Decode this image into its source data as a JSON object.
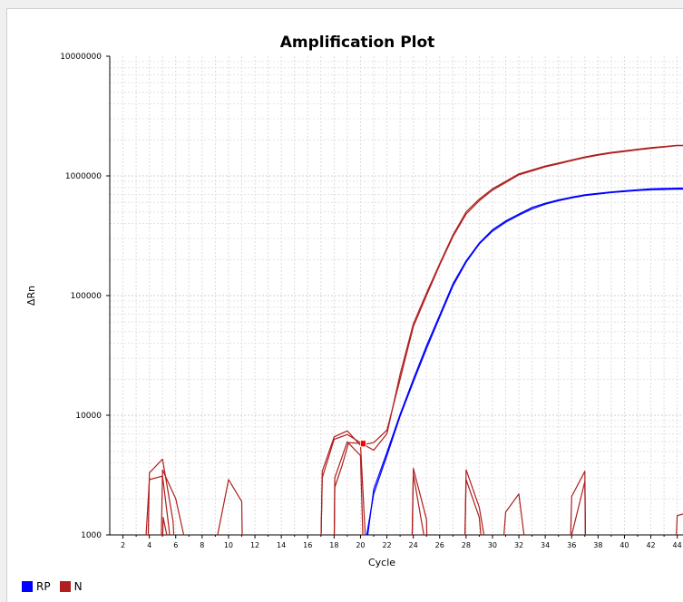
{
  "chart_data": {
    "type": "line",
    "title": "Amplification Plot",
    "xlabel": "Cycle",
    "ylabel": "ΔRn",
    "y_scale": "log",
    "ylim": [
      1000,
      10000000
    ],
    "xlim": [
      1,
      45
    ],
    "x_ticks": [
      2,
      4,
      6,
      8,
      10,
      12,
      14,
      16,
      18,
      20,
      22,
      24,
      26,
      28,
      30,
      32,
      34,
      36,
      38,
      40,
      42,
      44
    ],
    "y_ticks": [
      {
        "value": 1000,
        "label": "1000"
      },
      {
        "value": 10000,
        "label": "10000"
      },
      {
        "value": 100000,
        "label": "100000"
      },
      {
        "value": 1000000,
        "label": "1000000"
      },
      {
        "value": 10000000,
        "label": "10000000"
      }
    ],
    "grid": true,
    "legend_position": "bottom-left",
    "threshold_marker": {
      "x": 20.2,
      "y": 5800,
      "color": "#ff0000"
    },
    "series": [
      {
        "name": "RP",
        "color": "#0000ff",
        "lines": [
          [
            [
              20.4,
              900
            ],
            [
              21,
              2200
            ],
            [
              22,
              4600
            ],
            [
              23,
              9800
            ],
            [
              24,
              19000
            ],
            [
              25,
              36000
            ],
            [
              26,
              66000
            ],
            [
              27,
              120000
            ],
            [
              28,
              190000
            ],
            [
              29,
              270000
            ],
            [
              30,
              345000
            ],
            [
              31,
              410000
            ],
            [
              32,
              470000
            ],
            [
              33,
              530000
            ],
            [
              34,
              580000
            ],
            [
              35,
              620000
            ],
            [
              36,
              655000
            ],
            [
              37,
              685000
            ],
            [
              38,
              705000
            ],
            [
              39,
              725000
            ],
            [
              40,
              740000
            ],
            [
              41,
              755000
            ],
            [
              42,
              765000
            ],
            [
              43,
              770000
            ],
            [
              44,
              775000
            ],
            [
              45,
              775000
            ]
          ],
          [
            [
              20.5,
              900
            ],
            [
              21,
              2400
            ],
            [
              22,
              4900
            ],
            [
              23,
              10200
            ],
            [
              24,
              20000
            ],
            [
              25,
              38000
            ],
            [
              26,
              69000
            ],
            [
              27,
              125000
            ],
            [
              28,
              195000
            ],
            [
              29,
              275000
            ],
            [
              30,
              355000
            ],
            [
              31,
              420000
            ],
            [
              32,
              480000
            ],
            [
              33,
              545000
            ],
            [
              34,
              590000
            ],
            [
              35,
              630000
            ],
            [
              36,
              665000
            ],
            [
              37,
              695000
            ],
            [
              38,
              715000
            ],
            [
              39,
              735000
            ],
            [
              40,
              750000
            ],
            [
              41,
              765000
            ],
            [
              42,
              780000
            ],
            [
              43,
              785000
            ],
            [
              44,
              790000
            ],
            [
              45,
              790000
            ]
          ]
        ]
      },
      {
        "name": "N",
        "color": "#b01e1e",
        "lines": [
          [
            [
              17,
              800
            ],
            [
              17.1,
              3400
            ],
            [
              18,
              6600
            ],
            [
              19,
              7400
            ],
            [
              20,
              5600
            ],
            [
              21,
              5900
            ],
            [
              22,
              7500
            ],
            [
              23,
              20000
            ],
            [
              24,
              55000
            ],
            [
              25,
              100000
            ],
            [
              26,
              180000
            ],
            [
              27,
              310000
            ],
            [
              28,
              480000
            ],
            [
              29,
              620000
            ],
            [
              30,
              760000
            ],
            [
              31,
              880000
            ],
            [
              32,
              1020000
            ],
            [
              33,
              1100000
            ],
            [
              34,
              1190000
            ],
            [
              35,
              1260000
            ],
            [
              36,
              1340000
            ],
            [
              37,
              1420000
            ],
            [
              38,
              1490000
            ],
            [
              39,
              1550000
            ],
            [
              40,
              1600000
            ],
            [
              41,
              1650000
            ],
            [
              42,
              1700000
            ],
            [
              43,
              1740000
            ],
            [
              44,
              1790000
            ],
            [
              45,
              1790000
            ]
          ],
          [
            [
              17,
              800
            ],
            [
              17.1,
              3000
            ],
            [
              18,
              6300
            ],
            [
              19,
              6900
            ],
            [
              20,
              5900
            ],
            [
              21,
              5100
            ],
            [
              22,
              7000
            ],
            [
              23,
              22000
            ],
            [
              24,
              58000
            ],
            [
              25,
              105000
            ],
            [
              26,
              185000
            ],
            [
              27,
              320000
            ],
            [
              28,
              500000
            ],
            [
              29,
              640000
            ],
            [
              30,
              780000
            ],
            [
              31,
              900000
            ],
            [
              32,
              1040000
            ],
            [
              33,
              1120000
            ],
            [
              34,
              1210000
            ],
            [
              35,
              1280000
            ],
            [
              36,
              1360000
            ],
            [
              37,
              1440000
            ],
            [
              38,
              1510000
            ],
            [
              39,
              1570000
            ],
            [
              40,
              1620000
            ],
            [
              41,
              1670000
            ],
            [
              42,
              1720000
            ],
            [
              43,
              1760000
            ],
            [
              44,
              1800000
            ],
            [
              45,
              1800000
            ]
          ],
          [
            [
              18,
              800
            ],
            [
              18.05,
              2500
            ],
            [
              18.6,
              3800
            ],
            [
              19.1,
              5900
            ],
            [
              20,
              5800
            ],
            [
              20.4,
              800
            ]
          ],
          [
            [
              18,
              800
            ],
            [
              18.05,
              3000
            ],
            [
              19,
              6000
            ],
            [
              20,
              4600
            ],
            [
              20.2,
              800
            ]
          ],
          [
            [
              3.7,
              800
            ],
            [
              4,
              2900
            ],
            [
              5,
              3100
            ],
            [
              5.5,
              1100
            ],
            [
              5.6,
              800
            ]
          ],
          [
            [
              3.9,
              800
            ],
            [
              4,
              3300
            ],
            [
              5,
              4300
            ],
            [
              5.8,
              1300
            ],
            [
              5.9,
              800
            ]
          ],
          [
            [
              4.9,
              800
            ],
            [
              5,
              3500
            ],
            [
              6,
              2000
            ],
            [
              6.8,
              800
            ]
          ],
          [
            [
              5,
              800
            ],
            [
              5.05,
              1400
            ],
            [
              5.5,
              800
            ]
          ],
          [
            [
              9,
              800
            ],
            [
              10,
              2900
            ],
            [
              11,
              1900
            ],
            [
              11.05,
              800
            ]
          ],
          [
            [
              23.9,
              800
            ],
            [
              24,
              3600
            ],
            [
              25,
              1350
            ],
            [
              25.05,
              800
            ]
          ],
          [
            [
              23.9,
              800
            ],
            [
              24,
              3200
            ],
            [
              24.8,
              1000
            ],
            [
              24.9,
              800
            ]
          ],
          [
            [
              27.9,
              800
            ],
            [
              28,
              3500
            ],
            [
              29,
              1700
            ],
            [
              29.5,
              800
            ]
          ],
          [
            [
              27.9,
              800
            ],
            [
              28,
              2900
            ],
            [
              29,
              1400
            ],
            [
              29.2,
              800
            ]
          ],
          [
            [
              30.8,
              800
            ],
            [
              31,
              1550
            ],
            [
              32,
              2200
            ],
            [
              32.5,
              800
            ]
          ],
          [
            [
              35.9,
              800
            ],
            [
              36,
              2100
            ],
            [
              37,
              3400
            ],
            [
              37.05,
              800
            ]
          ],
          [
            [
              35.9,
              800
            ],
            [
              36,
              1000
            ],
            [
              37,
              2800
            ],
            [
              37.05,
              800
            ]
          ],
          [
            [
              43.9,
              800
            ],
            [
              44,
              1450
            ],
            [
              45,
              1550
            ]
          ]
        ]
      }
    ]
  },
  "legend": {
    "items": [
      {
        "name": "RP",
        "color": "#0000ff"
      },
      {
        "name": "N",
        "color": "#b01e1e"
      }
    ]
  }
}
